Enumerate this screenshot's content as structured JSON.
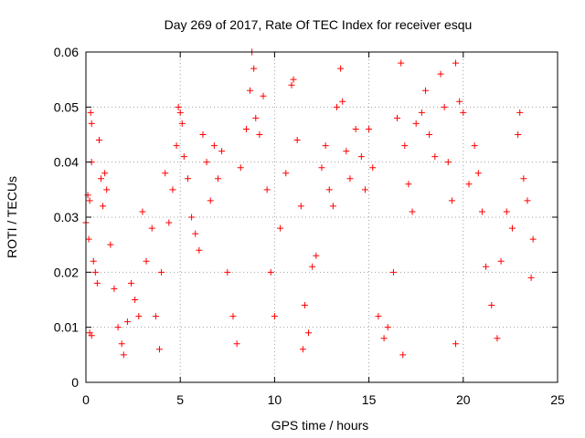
{
  "chart_data": {
    "type": "scatter",
    "title": "Day 269 of 2017, Rate Of TEC Index for receiver esqu",
    "xlabel": "GPS time / hours",
    "ylabel": "ROTI / TECUs",
    "xlim": [
      0,
      25
    ],
    "ylim": [
      0,
      0.06
    ],
    "xticks": [
      0,
      5,
      10,
      15,
      20,
      25
    ],
    "xtick_labels": [
      "0",
      "5",
      "10",
      "15",
      "20",
      "25"
    ],
    "yticks": [
      0,
      0.01,
      0.02,
      0.03,
      0.04,
      0.05,
      0.06
    ],
    "ytick_labels": [
      "0",
      "0.01",
      "0.02",
      "0.03",
      "0.04",
      "0.05",
      "0.06"
    ],
    "grid": true,
    "marker": "+",
    "color": "#ff0000",
    "x_range_of_data": [
      0,
      23.75
    ],
    "series": [
      {
        "name": "",
        "points": [
          [
            0.0,
            0.029
          ],
          [
            0.1,
            0.034
          ],
          [
            0.2,
            0.033
          ],
          [
            0.25,
            0.049
          ],
          [
            0.3,
            0.047
          ],
          [
            0.3,
            0.04
          ],
          [
            0.15,
            0.026
          ],
          [
            0.4,
            0.022
          ],
          [
            0.2,
            0.009
          ],
          [
            0.3,
            0.0085
          ],
          [
            0.5,
            0.02
          ],
          [
            0.6,
            0.018
          ],
          [
            0.7,
            0.044
          ],
          [
            0.8,
            0.037
          ],
          [
            0.9,
            0.032
          ],
          [
            1.0,
            0.038
          ],
          [
            1.1,
            0.035
          ],
          [
            1.3,
            0.025
          ],
          [
            1.5,
            0.017
          ],
          [
            1.7,
            0.01
          ],
          [
            1.9,
            0.007
          ],
          [
            2.0,
            0.005
          ],
          [
            2.2,
            0.011
          ],
          [
            2.4,
            0.018
          ],
          [
            2.6,
            0.015
          ],
          [
            2.8,
            0.012
          ],
          [
            3.0,
            0.031
          ],
          [
            3.2,
            0.022
          ],
          [
            3.5,
            0.028
          ],
          [
            3.7,
            0.012
          ],
          [
            3.9,
            0.006
          ],
          [
            4.0,
            0.02
          ],
          [
            4.2,
            0.038
          ],
          [
            4.4,
            0.029
          ],
          [
            4.6,
            0.035
          ],
          [
            4.8,
            0.043
          ],
          [
            4.9,
            0.05
          ],
          [
            5.0,
            0.049
          ],
          [
            5.1,
            0.047
          ],
          [
            5.2,
            0.041
          ],
          [
            5.4,
            0.037
          ],
          [
            5.6,
            0.03
          ],
          [
            5.8,
            0.027
          ],
          [
            6.0,
            0.024
          ],
          [
            6.2,
            0.045
          ],
          [
            6.4,
            0.04
          ],
          [
            6.6,
            0.033
          ],
          [
            6.8,
            0.043
          ],
          [
            7.0,
            0.037
          ],
          [
            7.2,
            0.042
          ],
          [
            7.5,
            0.02
          ],
          [
            7.8,
            0.012
          ],
          [
            8.0,
            0.007
          ],
          [
            8.2,
            0.039
          ],
          [
            8.5,
            0.046
          ],
          [
            8.7,
            0.053
          ],
          [
            8.8,
            0.06
          ],
          [
            8.9,
            0.057
          ],
          [
            9.0,
            0.048
          ],
          [
            9.2,
            0.045
          ],
          [
            9.4,
            0.052
          ],
          [
            9.6,
            0.035
          ],
          [
            9.8,
            0.02
          ],
          [
            10.0,
            0.012
          ],
          [
            10.3,
            0.028
          ],
          [
            10.6,
            0.038
          ],
          [
            10.9,
            0.054
          ],
          [
            11.0,
            0.055
          ],
          [
            11.2,
            0.044
          ],
          [
            11.4,
            0.032
          ],
          [
            11.6,
            0.014
          ],
          [
            11.8,
            0.009
          ],
          [
            12.0,
            0.021
          ],
          [
            12.2,
            0.023
          ],
          [
            12.5,
            0.039
          ],
          [
            12.7,
            0.043
          ],
          [
            12.9,
            0.035
          ],
          [
            13.1,
            0.032
          ],
          [
            13.3,
            0.05
          ],
          [
            13.5,
            0.057
          ],
          [
            13.6,
            0.051
          ],
          [
            13.8,
            0.042
          ],
          [
            14.0,
            0.037
          ],
          [
            14.3,
            0.046
          ],
          [
            14.6,
            0.041
          ],
          [
            14.8,
            0.035
          ],
          [
            15.0,
            0.046
          ],
          [
            15.2,
            0.039
          ],
          [
            15.5,
            0.012
          ],
          [
            15.8,
            0.008
          ],
          [
            16.0,
            0.01
          ],
          [
            16.3,
            0.02
          ],
          [
            16.5,
            0.048
          ],
          [
            16.7,
            0.058
          ],
          [
            16.9,
            0.043
          ],
          [
            17.1,
            0.036
          ],
          [
            17.3,
            0.031
          ],
          [
            17.5,
            0.047
          ],
          [
            17.8,
            0.049
          ],
          [
            18.0,
            0.053
          ],
          [
            18.2,
            0.045
          ],
          [
            18.5,
            0.041
          ],
          [
            18.8,
            0.056
          ],
          [
            19.0,
            0.05
          ],
          [
            19.2,
            0.04
          ],
          [
            19.4,
            0.033
          ],
          [
            19.6,
            0.058
          ],
          [
            19.8,
            0.051
          ],
          [
            20.0,
            0.049
          ],
          [
            20.3,
            0.036
          ],
          [
            20.6,
            0.043
          ],
          [
            20.8,
            0.038
          ],
          [
            21.0,
            0.031
          ],
          [
            21.2,
            0.021
          ],
          [
            21.5,
            0.014
          ],
          [
            21.8,
            0.008
          ],
          [
            22.0,
            0.022
          ],
          [
            22.3,
            0.031
          ],
          [
            22.6,
            0.028
          ],
          [
            22.9,
            0.045
          ],
          [
            23.0,
            0.049
          ],
          [
            23.2,
            0.037
          ],
          [
            23.4,
            0.033
          ],
          [
            23.6,
            0.019
          ],
          [
            23.7,
            0.026
          ],
          [
            19.6,
            0.007
          ],
          [
            16.8,
            0.005
          ],
          [
            11.5,
            0.006
          ]
        ]
      }
    ]
  }
}
